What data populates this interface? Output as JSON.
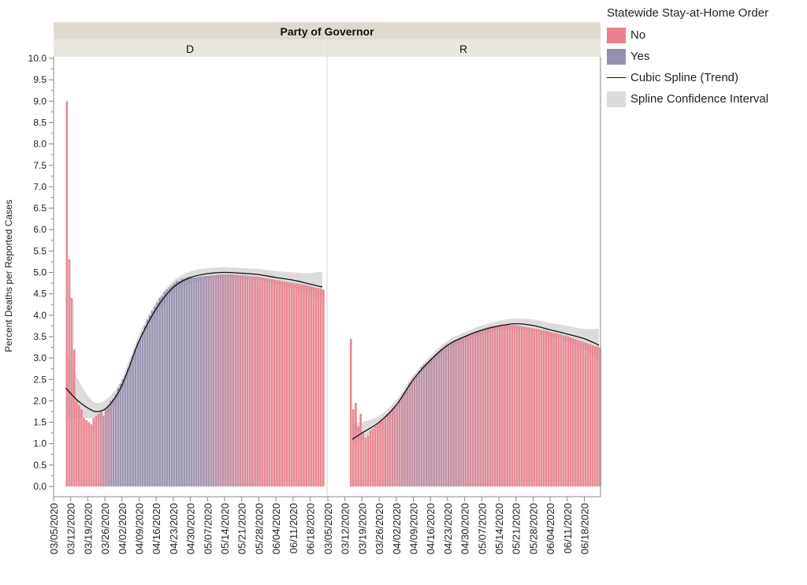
{
  "legend": {
    "title": "Statewide Stay-at-Home Order",
    "items": [
      {
        "label": "No",
        "color": "#E8838F"
      },
      {
        "label": "Yes",
        "color": "#9490AE"
      },
      {
        "label": "Cubic Spline (Trend)",
        "color": "#111111"
      },
      {
        "label": "Spline Confidence Interval",
        "color": "#DCDCDC"
      }
    ]
  },
  "chart_data": {
    "type": "bar",
    "title": "Party of Governor",
    "ylabel": "Percent Deaths per Reported Cases",
    "xlabel": "",
    "ylim": [
      0,
      10
    ],
    "yticks": [
      "0.0",
      "0.5",
      "1.0",
      "1.5",
      "2.0",
      "2.5",
      "3.0",
      "3.5",
      "4.0",
      "4.5",
      "5.0",
      "5.5",
      "6.0",
      "6.5",
      "7.0",
      "7.5",
      "8.0",
      "8.5",
      "9.0",
      "9.5",
      "10.0"
    ],
    "xticks": [
      "03/05/2020",
      "03/12/2020",
      "03/19/2020",
      "03/26/2020",
      "04/02/2020",
      "04/09/2020",
      "04/16/2020",
      "04/23/2020",
      "04/30/2020",
      "05/07/2020",
      "05/14/2020",
      "05/21/2020",
      "05/28/2020",
      "06/04/2020",
      "06/11/2020",
      "06/18/2020"
    ],
    "x_start_date": "03/05/2020",
    "panels": [
      {
        "label": "D",
        "bars_start_day": 5,
        "values": [
          9.0,
          5.3,
          4.4,
          3.2,
          2.0,
          1.9,
          1.8,
          1.6,
          1.55,
          1.5,
          1.45,
          1.6,
          1.65,
          1.7,
          1.75,
          1.65,
          1.8,
          1.9,
          2.0,
          2.05,
          2.15,
          2.3,
          2.4,
          2.5,
          2.6,
          2.75,
          2.9,
          3.05,
          3.2,
          3.35,
          3.45,
          3.6,
          3.75,
          3.9,
          4.0,
          4.1,
          4.2,
          4.3,
          4.4,
          4.45,
          4.55,
          4.6,
          4.65,
          4.7,
          4.75,
          4.8,
          4.8,
          4.85,
          4.85,
          4.88,
          4.9,
          4.9,
          4.88,
          4.89,
          4.9,
          4.9,
          4.91,
          4.92,
          4.92,
          4.93,
          4.93,
          4.94,
          4.94,
          4.95,
          4.95,
          4.95,
          4.95,
          4.95,
          4.95,
          4.94,
          4.94,
          4.93,
          4.93,
          4.92,
          4.92,
          4.91,
          4.91,
          4.9,
          4.9,
          4.89,
          4.88,
          4.87,
          4.86,
          4.85,
          4.84,
          4.83,
          4.82,
          4.81,
          4.8,
          4.79,
          4.78,
          4.77,
          4.76,
          4.75,
          4.74,
          4.73,
          4.72,
          4.71,
          4.7,
          4.69,
          4.67,
          4.66,
          4.64,
          4.63,
          4.62,
          4.6
        ],
        "yes_share": [
          [
            0,
            0
          ],
          [
            16,
            0
          ],
          [
            24,
            0.9
          ],
          [
            30,
            1
          ],
          [
            55,
            1
          ],
          [
            60,
            0.9
          ],
          [
            70,
            0.5
          ],
          [
            80,
            0.2
          ],
          [
            90,
            0
          ],
          [
            111,
            0
          ]
        ],
        "spline": [
          [
            5,
            2.3,
            1.6,
            3.2
          ],
          [
            10,
            2.0,
            1.6,
            2.5
          ],
          [
            15,
            1.8,
            1.6,
            2.05
          ],
          [
            18,
            1.75,
            1.6,
            1.95
          ],
          [
            22,
            1.85,
            1.7,
            2.05
          ],
          [
            27,
            2.25,
            2.1,
            2.4
          ],
          [
            31,
            2.8,
            2.65,
            2.95
          ],
          [
            35,
            3.4,
            3.25,
            3.55
          ],
          [
            42,
            4.15,
            4.0,
            4.3
          ],
          [
            49,
            4.65,
            4.5,
            4.8
          ],
          [
            56,
            4.88,
            4.75,
            5.02
          ],
          [
            63,
            4.97,
            4.85,
            5.1
          ],
          [
            70,
            5.0,
            4.88,
            5.12
          ],
          [
            77,
            4.98,
            4.86,
            5.1
          ],
          [
            84,
            4.95,
            4.82,
            5.08
          ],
          [
            91,
            4.88,
            4.72,
            5.03
          ],
          [
            98,
            4.82,
            4.62,
            5.0
          ],
          [
            104,
            4.74,
            4.48,
            4.98
          ],
          [
            110,
            4.66,
            4.3,
            5.02
          ]
        ]
      },
      {
        "label": "R",
        "bars_start_day": 9,
        "values": [
          3.45,
          1.8,
          1.95,
          1.4,
          1.7,
          1.25,
          1.15,
          1.2,
          1.3,
          1.35,
          1.4,
          1.45,
          1.5,
          1.55,
          1.6,
          1.7,
          1.75,
          1.8,
          1.85,
          1.9,
          2.0,
          2.1,
          2.2,
          2.3,
          2.4,
          2.45,
          2.55,
          2.6,
          2.7,
          2.8,
          2.85,
          2.9,
          2.95,
          3.0,
          3.05,
          3.1,
          3.15,
          3.2,
          3.25,
          3.3,
          3.3,
          3.35,
          3.4,
          3.42,
          3.45,
          3.48,
          3.5,
          3.52,
          3.55,
          3.58,
          3.6,
          3.62,
          3.64,
          3.66,
          3.68,
          3.7,
          3.72,
          3.73,
          3.74,
          3.75,
          3.76,
          3.77,
          3.78,
          3.78,
          3.78,
          3.78,
          3.77,
          3.77,
          3.76,
          3.75,
          3.74,
          3.73,
          3.72,
          3.71,
          3.7,
          3.69,
          3.68,
          3.67,
          3.66,
          3.65,
          3.64,
          3.62,
          3.6,
          3.59,
          3.58,
          3.56,
          3.55,
          3.53,
          3.52,
          3.5,
          3.48,
          3.46,
          3.44,
          3.42,
          3.4,
          3.38,
          3.36,
          3.34,
          3.32,
          3.3,
          3.28,
          3.27,
          3.25
        ],
        "yes_share": [
          [
            0,
            0
          ],
          [
            20,
            0
          ],
          [
            30,
            0.4
          ],
          [
            40,
            0.6
          ],
          [
            50,
            0.5
          ],
          [
            60,
            0.25
          ],
          [
            70,
            0.1
          ],
          [
            80,
            0
          ],
          [
            112,
            0
          ]
        ],
        "spline": [
          [
            10,
            1.1,
            0.95,
            1.45
          ],
          [
            14,
            1.25,
            1.1,
            1.5
          ],
          [
            21,
            1.5,
            1.4,
            1.65
          ],
          [
            28,
            1.9,
            1.8,
            2.02
          ],
          [
            35,
            2.5,
            2.4,
            2.6
          ],
          [
            42,
            2.95,
            2.85,
            3.05
          ],
          [
            49,
            3.3,
            3.2,
            3.4
          ],
          [
            56,
            3.5,
            3.4,
            3.6
          ],
          [
            63,
            3.65,
            3.55,
            3.76
          ],
          [
            70,
            3.75,
            3.65,
            3.87
          ],
          [
            77,
            3.8,
            3.68,
            3.92
          ],
          [
            84,
            3.76,
            3.63,
            3.9
          ],
          [
            91,
            3.66,
            3.5,
            3.82
          ],
          [
            98,
            3.56,
            3.38,
            3.75
          ],
          [
            105,
            3.45,
            3.2,
            3.68
          ],
          [
            111,
            3.3,
            2.95,
            3.68
          ]
        ]
      }
    ]
  }
}
